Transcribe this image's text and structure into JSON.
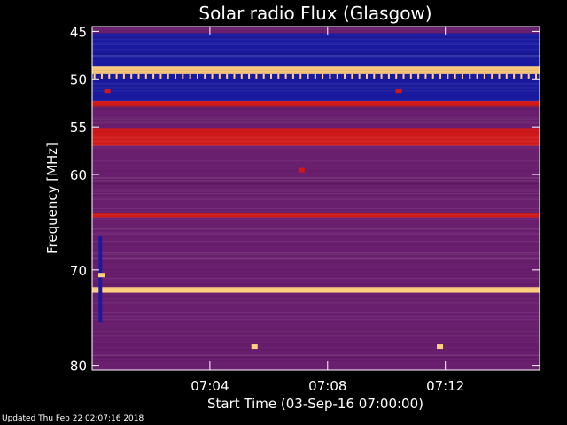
{
  "chart_data": {
    "type": "heatmap",
    "title": "Solar radio Flux (Glasgow)",
    "xlabel": "Start Time (03-Sep-16 07:00:00)",
    "ylabel": "Frequency [MHz]",
    "x_unit": "minutes after 07:00",
    "xlim": [
      0,
      15.2
    ],
    "ylim": [
      80.5,
      44.5
    ],
    "y_ticks": [
      {
        "value": 45,
        "label": "45"
      },
      {
        "value": 50,
        "label": "50"
      },
      {
        "value": 55,
        "label": "55"
      },
      {
        "value": 60,
        "label": "60"
      },
      {
        "value": 70,
        "label": "70"
      },
      {
        "value": 80,
        "label": "80"
      }
    ],
    "x_ticks": [
      {
        "value": 4,
        "label": "07:04"
      },
      {
        "value": 8,
        "label": "07:08"
      },
      {
        "value": 12,
        "label": "07:12"
      }
    ],
    "colors": {
      "background": "#000000",
      "low": "#1a1aa0",
      "mid": "#6a1e6e",
      "high": "#d01818",
      "peak": "#ffd080"
    },
    "bands": [
      {
        "from": 44.5,
        "to": 45.2,
        "level": "mid"
      },
      {
        "from": 45.2,
        "to": 48.7,
        "level": "low"
      },
      {
        "from": 48.7,
        "to": 49.5,
        "level": "peak"
      },
      {
        "from": 49.5,
        "to": 52.3,
        "level": "low"
      },
      {
        "from": 52.3,
        "to": 52.9,
        "level": "high"
      },
      {
        "from": 52.9,
        "to": 55.2,
        "level": "mid"
      },
      {
        "from": 55.2,
        "to": 57.0,
        "level": "high"
      },
      {
        "from": 57.0,
        "to": 64.0,
        "level": "mid"
      },
      {
        "from": 64.0,
        "to": 64.5,
        "level": "high"
      },
      {
        "from": 64.5,
        "to": 71.8,
        "level": "mid"
      },
      {
        "from": 71.8,
        "to": 72.4,
        "level": "peak"
      },
      {
        "from": 72.4,
        "to": 80.5,
        "level": "mid"
      }
    ],
    "features": [
      {
        "t": 0.5,
        "f": 51.2,
        "level": "high"
      },
      {
        "t": 10.4,
        "f": 51.2,
        "level": "high"
      },
      {
        "t": 7.1,
        "f": 59.5,
        "level": "high"
      },
      {
        "t": 5.5,
        "f": 78.0,
        "level": "peak"
      },
      {
        "t": 11.8,
        "f": 78.0,
        "level": "peak"
      },
      {
        "t": 0.3,
        "f": 70.5,
        "level": "peak"
      }
    ]
  },
  "footer": {
    "updated": "Updated Thu Feb 22 02:07:16 2018"
  }
}
